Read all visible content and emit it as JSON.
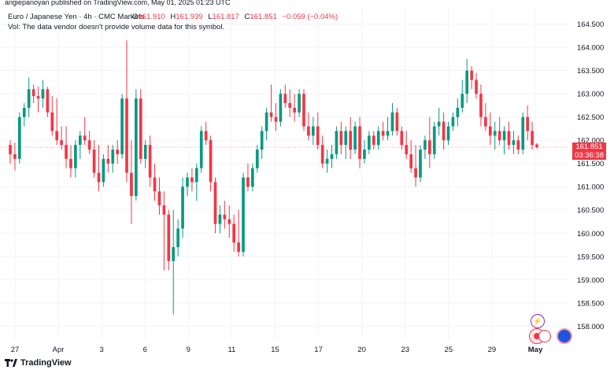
{
  "attribution": "angiepanoyan published on TradingView.com, May 01, 2025 01:23 UTC",
  "header": {
    "symbol": "Euro / Japanese Yen · 4h · CMC Markets",
    "o_label": "O",
    "o_value": "161.910",
    "h_label": "H",
    "h_value": "161.939",
    "l_label": "L",
    "l_value": "161.817",
    "c_label": "C",
    "c_value": "161.851",
    "change": "−0.059 (−0.04%)",
    "volume_note": "Vol: The data vendor doesn't provide volume data for this symbol."
  },
  "price_tag": {
    "price": "161.851",
    "countdown": "03:36:38"
  },
  "logo_text": "TradingView",
  "colors": {
    "up": "#089981",
    "down": "#f23645",
    "grid": "#f0f3fa",
    "text": "#131722"
  },
  "chart_data": {
    "type": "candlestick",
    "x_tick_labels": [
      "27",
      "Apr",
      "3",
      "6",
      "9",
      "11",
      "15",
      "17",
      "20",
      "23",
      "25",
      "29",
      "May"
    ],
    "y_tick_labels": [
      "158.000",
      "158.500",
      "159.000",
      "159.500",
      "160.000",
      "160.500",
      "161.000",
      "161.500",
      "162.000",
      "162.500",
      "163.000",
      "163.500",
      "164.000",
      "164.500"
    ],
    "ylim": [
      157.7,
      164.85
    ],
    "last_price": 161.851,
    "candles": [
      [
        161.9,
        162.0,
        161.5,
        161.7
      ],
      [
        161.7,
        161.95,
        161.35,
        161.6
      ],
      [
        161.6,
        162.6,
        161.5,
        162.5
      ],
      [
        162.5,
        162.8,
        162.3,
        162.7
      ],
      [
        162.7,
        163.35,
        162.5,
        163.1
      ],
      [
        163.1,
        163.2,
        162.8,
        162.95
      ],
      [
        162.95,
        163.15,
        162.6,
        162.9
      ],
      [
        162.9,
        163.3,
        162.7,
        163.1
      ],
      [
        163.1,
        163.15,
        162.5,
        162.6
      ],
      [
        162.6,
        162.95,
        162.1,
        162.2
      ],
      [
        162.2,
        162.9,
        161.9,
        162.0
      ],
      [
        162.0,
        162.3,
        161.8,
        161.9
      ],
      [
        161.9,
        162.3,
        161.4,
        161.6
      ],
      [
        161.6,
        161.9,
        161.2,
        161.4
      ],
      [
        161.4,
        162.0,
        161.2,
        161.9
      ],
      [
        161.9,
        162.2,
        161.6,
        162.1
      ],
      [
        162.1,
        162.5,
        161.9,
        162.0
      ],
      [
        162.0,
        162.2,
        161.7,
        161.8
      ],
      [
        161.8,
        162.0,
        161.2,
        161.3
      ],
      [
        161.3,
        161.9,
        160.9,
        161.1
      ],
      [
        161.1,
        161.7,
        161.0,
        161.6
      ],
      [
        161.6,
        161.9,
        161.3,
        161.5
      ],
      [
        161.5,
        161.9,
        161.3,
        161.8
      ],
      [
        161.8,
        162.0,
        161.5,
        161.7
      ],
      [
        161.7,
        163.0,
        161.6,
        162.9
      ],
      [
        162.9,
        164.15,
        161.1,
        161.3
      ],
      [
        161.3,
        162.0,
        160.2,
        160.8
      ],
      [
        160.8,
        163.1,
        160.7,
        162.9
      ],
      [
        162.9,
        163.1,
        161.5,
        161.6
      ],
      [
        161.6,
        162.0,
        161.4,
        161.9
      ],
      [
        161.9,
        162.1,
        161.0,
        161.2
      ],
      [
        161.2,
        161.5,
        160.7,
        160.9
      ],
      [
        160.9,
        161.2,
        160.4,
        160.6
      ],
      [
        160.6,
        160.9,
        159.2,
        160.4
      ],
      [
        160.4,
        160.5,
        159.2,
        159.4
      ],
      [
        159.4,
        160.5,
        158.25,
        159.7
      ],
      [
        159.7,
        160.3,
        159.5,
        160.1
      ],
      [
        160.1,
        161.2,
        159.9,
        161.0
      ],
      [
        161.0,
        161.3,
        160.8,
        161.2
      ],
      [
        161.2,
        161.4,
        160.9,
        161.1
      ],
      [
        161.1,
        161.5,
        160.7,
        161.4
      ],
      [
        161.4,
        162.3,
        161.3,
        162.2
      ],
      [
        162.2,
        162.4,
        161.9,
        162.0
      ],
      [
        162.0,
        162.1,
        160.9,
        161.1
      ],
      [
        161.1,
        161.2,
        160.0,
        160.2
      ],
      [
        160.2,
        160.6,
        160.0,
        160.4
      ],
      [
        160.4,
        160.7,
        160.1,
        160.3
      ],
      [
        160.3,
        160.6,
        159.9,
        160.2
      ],
      [
        160.2,
        160.4,
        159.6,
        159.8
      ],
      [
        159.8,
        160.5,
        159.5,
        159.6
      ],
      [
        159.6,
        161.3,
        159.5,
        161.2
      ],
      [
        161.2,
        161.5,
        160.9,
        161.0
      ],
      [
        161.0,
        161.5,
        160.9,
        161.4
      ],
      [
        161.4,
        161.9,
        161.3,
        161.8
      ],
      [
        161.8,
        162.3,
        161.6,
        162.2
      ],
      [
        162.2,
        162.7,
        162.0,
        162.6
      ],
      [
        162.6,
        163.2,
        162.4,
        162.5
      ],
      [
        162.5,
        162.8,
        162.2,
        162.4
      ],
      [
        162.4,
        163.1,
        162.3,
        163.0
      ],
      [
        163.0,
        163.2,
        162.7,
        162.8
      ],
      [
        162.8,
        163.1,
        162.5,
        162.7
      ],
      [
        162.7,
        163.0,
        162.4,
        162.6
      ],
      [
        162.6,
        163.1,
        162.5,
        163.0
      ],
      [
        163.0,
        163.1,
        162.2,
        162.3
      ],
      [
        162.3,
        162.6,
        162.0,
        162.1
      ],
      [
        162.1,
        162.5,
        161.9,
        162.3
      ],
      [
        162.3,
        162.6,
        161.8,
        161.9
      ],
      [
        161.9,
        162.1,
        161.4,
        161.5
      ],
      [
        161.5,
        161.8,
        161.3,
        161.6
      ],
      [
        161.6,
        161.9,
        161.4,
        161.7
      ],
      [
        161.7,
        162.3,
        161.6,
        162.2
      ],
      [
        162.2,
        162.4,
        161.7,
        161.9
      ],
      [
        161.9,
        162.3,
        161.6,
        162.2
      ],
      [
        162.2,
        162.5,
        161.6,
        161.8
      ],
      [
        161.8,
        162.4,
        161.7,
        162.3
      ],
      [
        162.3,
        162.5,
        161.4,
        161.6
      ],
      [
        161.6,
        162.0,
        161.5,
        161.8
      ],
      [
        161.8,
        162.2,
        161.7,
        162.1
      ],
      [
        162.1,
        162.2,
        161.8,
        161.9
      ],
      [
        161.9,
        162.3,
        161.8,
        162.2
      ],
      [
        162.2,
        162.4,
        162.0,
        162.1
      ],
      [
        162.1,
        162.5,
        162.0,
        162.2
      ],
      [
        162.2,
        162.8,
        162.1,
        162.6
      ],
      [
        162.6,
        162.7,
        162.1,
        162.2
      ],
      [
        162.2,
        162.3,
        161.8,
        161.9
      ],
      [
        161.9,
        162.2,
        161.6,
        161.7
      ],
      [
        161.7,
        162.0,
        161.3,
        161.4
      ],
      [
        161.4,
        161.9,
        161.0,
        161.2
      ],
      [
        161.2,
        161.9,
        161.1,
        161.8
      ],
      [
        161.8,
        162.1,
        161.6,
        162.0
      ],
      [
        162.0,
        162.5,
        161.4,
        161.7
      ],
      [
        161.7,
        162.4,
        161.6,
        162.3
      ],
      [
        162.3,
        162.7,
        162.1,
        162.4
      ],
      [
        162.4,
        162.6,
        161.8,
        162.0
      ],
      [
        162.0,
        162.4,
        161.9,
        162.3
      ],
      [
        162.3,
        162.6,
        162.2,
        162.5
      ],
      [
        162.5,
        162.9,
        162.3,
        162.7
      ],
      [
        162.7,
        163.3,
        162.6,
        163.0
      ],
      [
        163.0,
        163.75,
        162.8,
        163.5
      ],
      [
        163.5,
        163.6,
        163.1,
        163.3
      ],
      [
        163.3,
        163.45,
        162.9,
        163.0
      ],
      [
        163.0,
        163.2,
        162.3,
        162.5
      ],
      [
        162.5,
        162.8,
        162.2,
        162.3
      ],
      [
        162.3,
        162.6,
        161.9,
        162.1
      ],
      [
        162.1,
        162.4,
        161.8,
        162.2
      ],
      [
        162.2,
        162.5,
        161.9,
        162.0
      ],
      [
        162.0,
        162.3,
        161.7,
        162.2
      ],
      [
        162.2,
        162.4,
        161.8,
        161.9
      ],
      [
        161.9,
        162.2,
        161.7,
        162.0
      ],
      [
        162.0,
        162.1,
        161.7,
        161.8
      ],
      [
        161.8,
        162.6,
        161.7,
        162.5
      ],
      [
        162.5,
        162.75,
        162.0,
        162.2
      ],
      [
        162.2,
        162.4,
        161.8,
        161.9
      ],
      [
        161.91,
        161.94,
        161.82,
        161.851
      ]
    ]
  }
}
